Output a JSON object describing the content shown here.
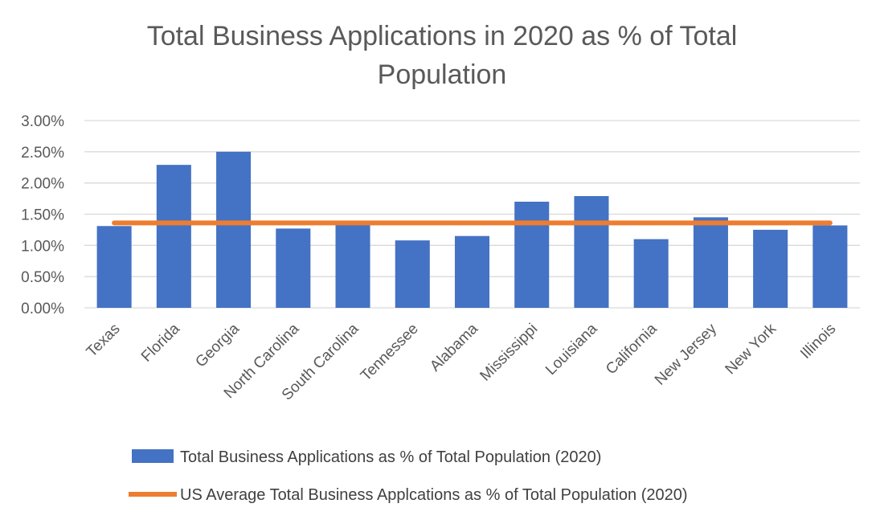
{
  "chart_data": {
    "type": "bar",
    "title_lines": [
      "Total Business Applications in 2020 as % of Total",
      "Population"
    ],
    "xlabel": "",
    "ylabel": "",
    "categories": [
      "Texas",
      "Florida",
      "Georgia",
      "North Carolina",
      "South Carolina",
      "Tennessee",
      "Alabama",
      "Mississippi",
      "Louisiana",
      "California",
      "New Jersey",
      "New York",
      "Illinois"
    ],
    "series": [
      {
        "name": "Total Business Applications as % of Total Population (2020)",
        "kind": "bar",
        "color": "#4472c4",
        "values": [
          1.31,
          2.29,
          2.5,
          1.27,
          1.35,
          1.08,
          1.15,
          1.7,
          1.79,
          1.1,
          1.45,
          1.25,
          1.32
        ]
      },
      {
        "name": "US Average Total Business Applcations as % of Total Population (2020)",
        "kind": "line",
        "color": "#ed7d31",
        "value": 1.36
      }
    ],
    "ylim": [
      0,
      3.0
    ],
    "yticks": [
      {
        "value": 0,
        "label": "0.00%"
      },
      {
        "value": 0.5,
        "label": "0.50%"
      },
      {
        "value": 1.0,
        "label": "1.00%"
      },
      {
        "value": 1.5,
        "label": "1.50%"
      },
      {
        "value": 2.0,
        "label": "2.00%"
      },
      {
        "value": 2.5,
        "label": "2.50%"
      },
      {
        "value": 3.0,
        "label": "3.00%"
      }
    ],
    "grid": true,
    "legend_position": "bottom",
    "colors": {
      "gridline": "#d9d9d9",
      "text": "#595959"
    }
  }
}
